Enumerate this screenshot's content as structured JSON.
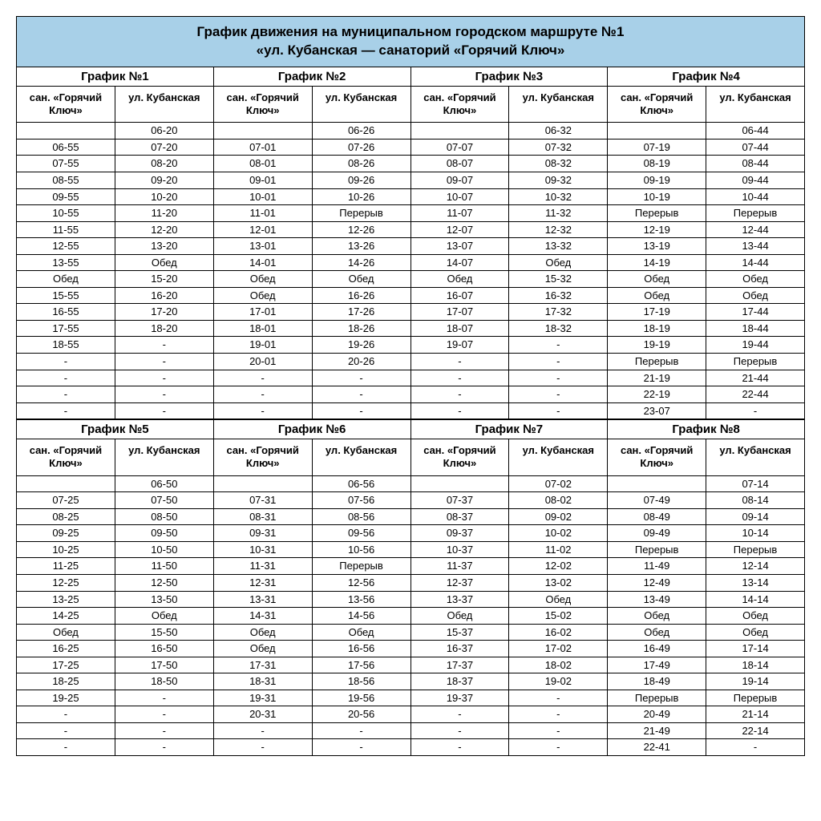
{
  "title_line1": "График движения на муниципальном городском маршруте №1",
  "title_line2": "«ул. Кубанская — санаторий «Горячий Ключ»",
  "col_header_a": "сан. «Горячий Ключ»",
  "col_header_b": "ул. Кубанская",
  "colors": {
    "header_bg": "#a8d0e8",
    "border": "#000000",
    "text": "#000000",
    "bg": "#ffffff"
  },
  "sections": [
    {
      "schedules": [
        {
          "title": "График №1",
          "rows": [
            [
              "",
              "06-20"
            ],
            [
              "06-55",
              "07-20"
            ],
            [
              "07-55",
              "08-20"
            ],
            [
              "08-55",
              "09-20"
            ],
            [
              "09-55",
              "10-20"
            ],
            [
              "10-55",
              "11-20"
            ],
            [
              "11-55",
              "12-20"
            ],
            [
              "12-55",
              "13-20"
            ],
            [
              "13-55",
              "Обед"
            ],
            [
              "Обед",
              "15-20"
            ],
            [
              "15-55",
              "16-20"
            ],
            [
              "16-55",
              "17-20"
            ],
            [
              "17-55",
              "18-20"
            ],
            [
              "18-55",
              "-"
            ],
            [
              "-",
              "-"
            ],
            [
              "-",
              "-"
            ],
            [
              "-",
              "-"
            ],
            [
              "-",
              "-"
            ]
          ]
        },
        {
          "title": "График №2",
          "rows": [
            [
              "",
              "06-26"
            ],
            [
              "07-01",
              "07-26"
            ],
            [
              "08-01",
              "08-26"
            ],
            [
              "09-01",
              "09-26"
            ],
            [
              "10-01",
              "10-26"
            ],
            [
              "11-01",
              "Перерыв"
            ],
            [
              "12-01",
              "12-26"
            ],
            [
              "13-01",
              "13-26"
            ],
            [
              "14-01",
              "14-26"
            ],
            [
              "Обед",
              "Обед"
            ],
            [
              "Обед",
              "16-26"
            ],
            [
              "17-01",
              "17-26"
            ],
            [
              "18-01",
              "18-26"
            ],
            [
              "19-01",
              "19-26"
            ],
            [
              "20-01",
              "20-26"
            ],
            [
              "-",
              "-"
            ],
            [
              "-",
              "-"
            ],
            [
              "-",
              "-"
            ]
          ]
        },
        {
          "title": "График №3",
          "rows": [
            [
              "",
              "06-32"
            ],
            [
              "07-07",
              "07-32"
            ],
            [
              "08-07",
              "08-32"
            ],
            [
              "09-07",
              "09-32"
            ],
            [
              "10-07",
              "10-32"
            ],
            [
              "11-07",
              "11-32"
            ],
            [
              "12-07",
              "12-32"
            ],
            [
              "13-07",
              "13-32"
            ],
            [
              "14-07",
              "Обед"
            ],
            [
              "Обед",
              "15-32"
            ],
            [
              "16-07",
              "16-32"
            ],
            [
              "17-07",
              "17-32"
            ],
            [
              "18-07",
              "18-32"
            ],
            [
              "19-07",
              "-"
            ],
            [
              "-",
              "-"
            ],
            [
              "-",
              "-"
            ],
            [
              "-",
              "-"
            ],
            [
              "-",
              "-"
            ]
          ]
        },
        {
          "title": "График №4",
          "rows": [
            [
              "",
              "06-44"
            ],
            [
              "07-19",
              "07-44"
            ],
            [
              "08-19",
              "08-44"
            ],
            [
              "09-19",
              "09-44"
            ],
            [
              "10-19",
              "10-44"
            ],
            [
              "Перерыв",
              "Перерыв"
            ],
            [
              "12-19",
              "12-44"
            ],
            [
              "13-19",
              "13-44"
            ],
            [
              "14-19",
              "14-44"
            ],
            [
              "Обед",
              "Обед"
            ],
            [
              "Обед",
              "Обед"
            ],
            [
              "17-19",
              "17-44"
            ],
            [
              "18-19",
              "18-44"
            ],
            [
              "19-19",
              "19-44"
            ],
            [
              "Перерыв",
              "Перерыв"
            ],
            [
              "21-19",
              "21-44"
            ],
            [
              "22-19",
              "22-44"
            ],
            [
              "23-07",
              "-"
            ]
          ]
        }
      ]
    },
    {
      "schedules": [
        {
          "title": "График №5",
          "rows": [
            [
              "",
              "06-50"
            ],
            [
              "07-25",
              "07-50"
            ],
            [
              "08-25",
              "08-50"
            ],
            [
              "09-25",
              "09-50"
            ],
            [
              "10-25",
              "10-50"
            ],
            [
              "11-25",
              "11-50"
            ],
            [
              "12-25",
              "12-50"
            ],
            [
              "13-25",
              "13-50"
            ],
            [
              "14-25",
              "Обед"
            ],
            [
              "Обед",
              "15-50"
            ],
            [
              "16-25",
              "16-50"
            ],
            [
              "17-25",
              "17-50"
            ],
            [
              "18-25",
              "18-50"
            ],
            [
              "19-25",
              "-"
            ],
            [
              "-",
              "-"
            ],
            [
              "-",
              "-"
            ],
            [
              "-",
              "-"
            ]
          ]
        },
        {
          "title": "График №6",
          "rows": [
            [
              "",
              "06-56"
            ],
            [
              "07-31",
              "07-56"
            ],
            [
              "08-31",
              "08-56"
            ],
            [
              "09-31",
              "09-56"
            ],
            [
              "10-31",
              "10-56"
            ],
            [
              "11-31",
              "Перерыв"
            ],
            [
              "12-31",
              "12-56"
            ],
            [
              "13-31",
              "13-56"
            ],
            [
              "14-31",
              "14-56"
            ],
            [
              "Обед",
              "Обед"
            ],
            [
              "Обед",
              "16-56"
            ],
            [
              "17-31",
              "17-56"
            ],
            [
              "18-31",
              "18-56"
            ],
            [
              "19-31",
              "19-56"
            ],
            [
              "20-31",
              "20-56"
            ],
            [
              "-",
              "-"
            ],
            [
              "-",
              "-"
            ]
          ]
        },
        {
          "title": "График №7",
          "rows": [
            [
              "",
              "07-02"
            ],
            [
              "07-37",
              "08-02"
            ],
            [
              "08-37",
              "09-02"
            ],
            [
              "09-37",
              "10-02"
            ],
            [
              "10-37",
              "11-02"
            ],
            [
              "11-37",
              "12-02"
            ],
            [
              "12-37",
              "13-02"
            ],
            [
              "13-37",
              "Обед"
            ],
            [
              "Обед",
              "15-02"
            ],
            [
              "15-37",
              "16-02"
            ],
            [
              "16-37",
              "17-02"
            ],
            [
              "17-37",
              "18-02"
            ],
            [
              "18-37",
              "19-02"
            ],
            [
              "19-37",
              "-"
            ],
            [
              "-",
              "-"
            ],
            [
              "-",
              "-"
            ],
            [
              "-",
              "-"
            ]
          ]
        },
        {
          "title": "График №8",
          "rows": [
            [
              "",
              "07-14"
            ],
            [
              "07-49",
              "08-14"
            ],
            [
              "08-49",
              "09-14"
            ],
            [
              "09-49",
              "10-14"
            ],
            [
              "Перерыв",
              "Перерыв"
            ],
            [
              "11-49",
              "12-14"
            ],
            [
              "12-49",
              "13-14"
            ],
            [
              "13-49",
              "14-14"
            ],
            [
              "Обед",
              "Обед"
            ],
            [
              "Обед",
              "Обед"
            ],
            [
              "16-49",
              "17-14"
            ],
            [
              "17-49",
              "18-14"
            ],
            [
              "18-49",
              "19-14"
            ],
            [
              "Перерыв",
              "Перерыв"
            ],
            [
              "20-49",
              "21-14"
            ],
            [
              "21-49",
              "22-14"
            ],
            [
              "22-41",
              "-"
            ]
          ]
        }
      ]
    }
  ]
}
